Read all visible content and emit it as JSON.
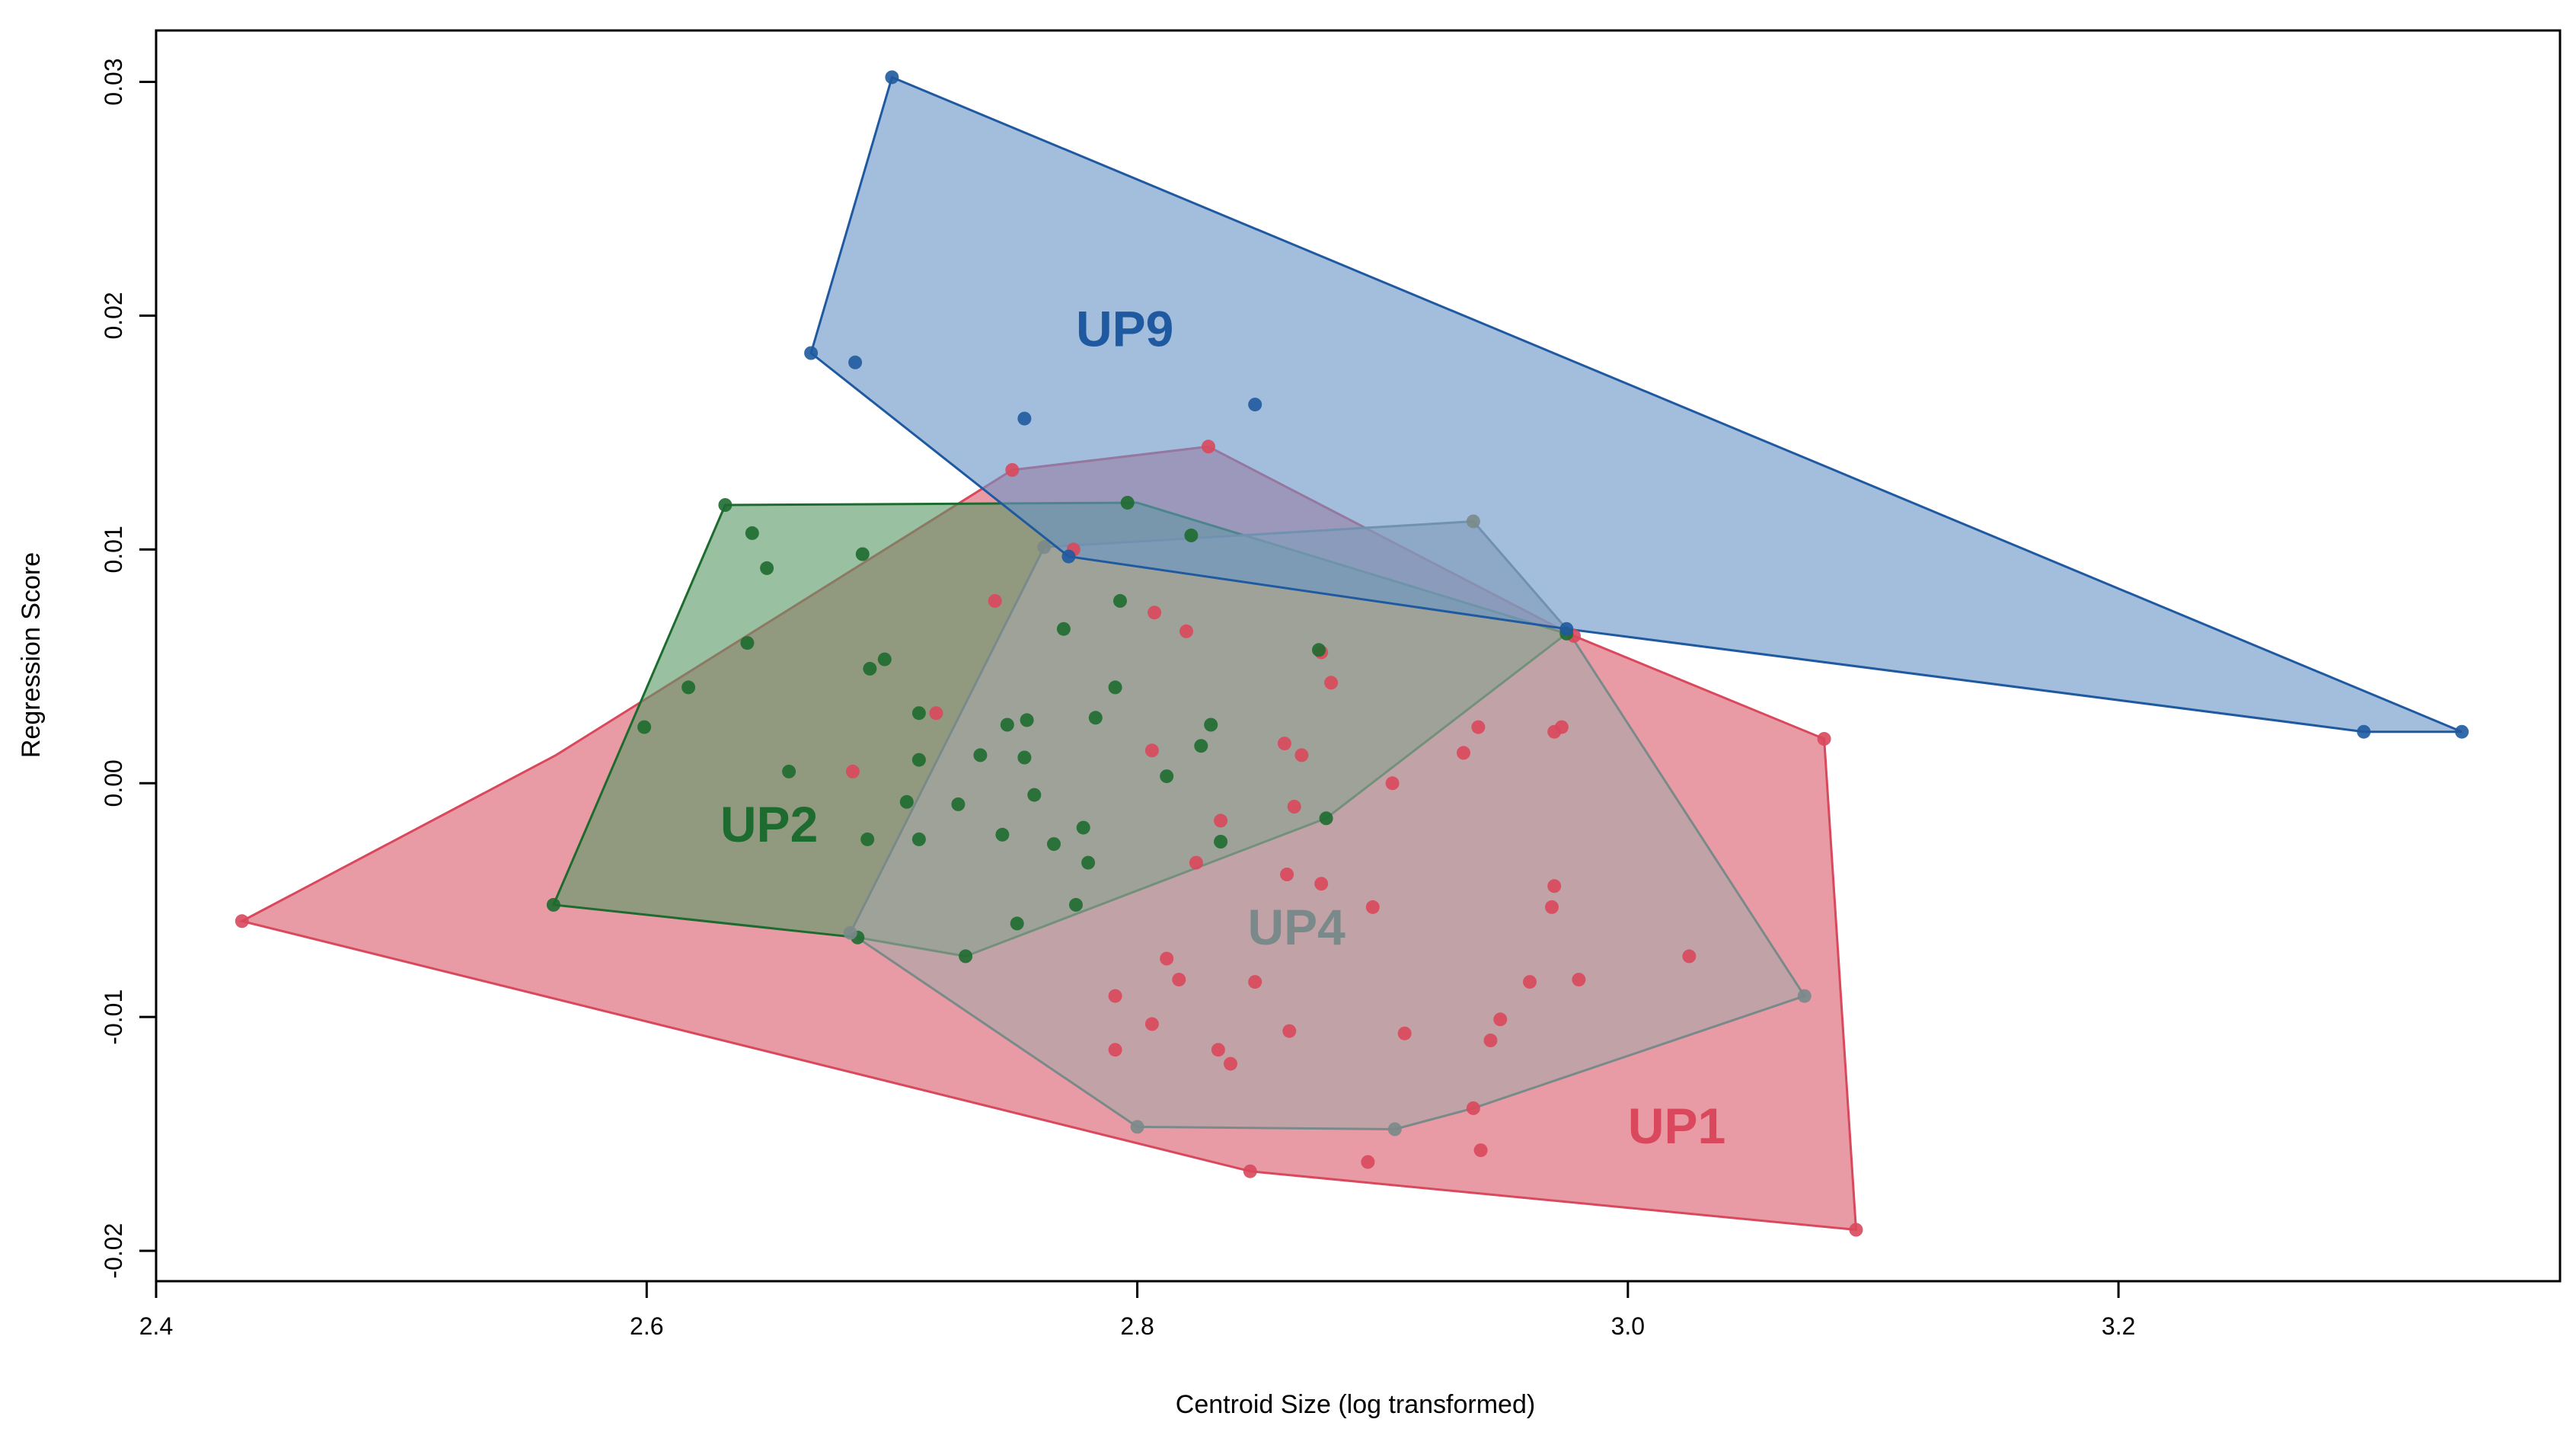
{
  "chart_data": {
    "type": "scatter",
    "title": "",
    "xlabel": "Centroid Size (log transformed)",
    "ylabel": "Regression Score",
    "xlim": [
      2.4,
      3.38
    ],
    "ylim": [
      -0.0213,
      0.0322
    ],
    "x_ticks": [
      {
        "value": 2.4,
        "label": "2.4"
      },
      {
        "value": 2.6,
        "label": "2.6"
      },
      {
        "value": 2.8,
        "label": "2.8"
      },
      {
        "value": 3.0,
        "label": "3.0"
      },
      {
        "value": 3.2,
        "label": "3.2"
      }
    ],
    "y_ticks": [
      {
        "value": -0.02,
        "label": "-0.02"
      },
      {
        "value": -0.01,
        "label": "-0.01"
      },
      {
        "value": 0.0,
        "label": "0.00"
      },
      {
        "value": 0.01,
        "label": "0.01"
      },
      {
        "value": 0.02,
        "label": "0.02"
      },
      {
        "value": 0.03,
        "label": "0.03"
      }
    ],
    "grid": false,
    "legend": "none",
    "series": [
      {
        "name": "UP1",
        "color": "#d9485c",
        "fill": "#e17a87",
        "label_at": [
          3.0,
          -0.0154
        ],
        "hull": [
          [
            2.435,
            -0.0059
          ],
          [
            2.846,
            -0.0166
          ],
          [
            3.093,
            -0.0191
          ],
          [
            3.08,
            0.0019
          ],
          [
            2.978,
            0.0063
          ],
          [
            2.829,
            0.0144
          ],
          [
            2.749,
            0.0134
          ],
          [
            2.563,
            0.0012
          ]
        ],
        "points": [
          [
            2.435,
            -0.0059
          ],
          [
            2.846,
            -0.0166
          ],
          [
            3.093,
            -0.0191
          ],
          [
            3.08,
            0.0019
          ],
          [
            2.978,
            0.0063
          ],
          [
            2.829,
            0.0144
          ],
          [
            2.749,
            0.0134
          ],
          [
            2.894,
            -0.0162
          ],
          [
            2.94,
            -0.0157
          ],
          [
            2.937,
            -0.0139
          ],
          [
            2.909,
            -0.0107
          ],
          [
            2.944,
            -0.011
          ],
          [
            2.948,
            -0.0101
          ],
          [
            2.96,
            -0.0085
          ],
          [
            2.98,
            -0.0084
          ],
          [
            3.025,
            -0.0074
          ],
          [
            2.969,
            -0.0053
          ],
          [
            2.97,
            -0.0044
          ],
          [
            2.97,
            0.0022
          ],
          [
            2.973,
            0.0024
          ],
          [
            2.939,
            0.0024
          ],
          [
            2.933,
            0.0013
          ],
          [
            2.904,
            0.0
          ],
          [
            2.896,
            -0.0053
          ],
          [
            2.875,
            -0.0043
          ],
          [
            2.861,
            -0.0039
          ],
          [
            2.862,
            -0.0106
          ],
          [
            2.848,
            -0.0085
          ],
          [
            2.838,
            -0.012
          ],
          [
            2.833,
            -0.0114
          ],
          [
            2.817,
            -0.0084
          ],
          [
            2.812,
            -0.0075
          ],
          [
            2.806,
            -0.0103
          ],
          [
            2.791,
            -0.0114
          ],
          [
            2.791,
            -0.0091
          ],
          [
            2.864,
            -0.001
          ],
          [
            2.867,
            0.0012
          ],
          [
            2.86,
            0.0017
          ],
          [
            2.879,
            0.0043
          ],
          [
            2.875,
            0.0056
          ],
          [
            2.834,
            -0.0016
          ],
          [
            2.824,
            -0.0034
          ],
          [
            2.82,
            0.0065
          ],
          [
            2.807,
            0.0073
          ],
          [
            2.806,
            0.0014
          ],
          [
            2.718,
            0.003
          ],
          [
            2.742,
            0.0078
          ],
          [
            2.774,
            0.01
          ],
          [
            2.684,
            0.0005
          ]
        ]
      },
      {
        "name": "UP2",
        "color": "#1e6b30",
        "fill": "#5a9a68",
        "label_at": [
          2.63,
          -0.0025
        ],
        "hull": [
          [
            2.562,
            -0.0052
          ],
          [
            2.686,
            -0.0066
          ],
          [
            2.73,
            -0.0074
          ],
          [
            2.877,
            -0.0015
          ],
          [
            2.975,
            0.0064
          ],
          [
            2.8,
            0.012
          ],
          [
            2.632,
            0.0119
          ]
        ],
        "points": [
          [
            2.562,
            -0.0052
          ],
          [
            2.632,
            0.0119
          ],
          [
            2.643,
            0.0107
          ],
          [
            2.649,
            0.0092
          ],
          [
            2.688,
            0.0098
          ],
          [
            2.641,
            0.006
          ],
          [
            2.617,
            0.0041
          ],
          [
            2.599,
            0.0024
          ],
          [
            2.658,
            0.0005
          ],
          [
            2.691,
            0.0049
          ],
          [
            2.697,
            0.0053
          ],
          [
            2.711,
            0.003
          ],
          [
            2.711,
            0.001
          ],
          [
            2.706,
            -0.0008
          ],
          [
            2.69,
            -0.0024
          ],
          [
            2.686,
            -0.0066
          ],
          [
            2.73,
            -0.0074
          ],
          [
            2.877,
            -0.0015
          ],
          [
            2.975,
            0.0064
          ],
          [
            2.796,
            0.012
          ],
          [
            2.822,
            0.0106
          ],
          [
            2.747,
            0.0025
          ],
          [
            2.754,
            0.0011
          ],
          [
            2.745,
            -0.0022
          ],
          [
            2.711,
            -0.0024
          ],
          [
            2.758,
            -0.0005
          ],
          [
            2.778,
            -0.0019
          ],
          [
            2.766,
            -0.0026
          ],
          [
            2.77,
            0.0066
          ],
          [
            2.783,
            0.0028
          ],
          [
            2.791,
            0.0041
          ],
          [
            2.793,
            0.0078
          ],
          [
            2.78,
            -0.0034
          ],
          [
            2.775,
            -0.0052
          ],
          [
            2.751,
            -0.006
          ],
          [
            2.834,
            -0.0025
          ],
          [
            2.83,
            0.0025
          ],
          [
            2.826,
            0.0016
          ],
          [
            2.874,
            0.0057
          ],
          [
            2.812,
            0.0003
          ],
          [
            2.755,
            0.0027
          ],
          [
            2.727,
            -0.0009
          ],
          [
            2.736,
            0.0012
          ]
        ]
      },
      {
        "name": "UP4",
        "color": "#7a8a8a",
        "fill": "#a8a8a8",
        "label_at": [
          2.845,
          -0.0069
        ],
        "hull": [
          [
            2.683,
            -0.0064
          ],
          [
            2.8,
            -0.0147
          ],
          [
            2.905,
            -0.0148
          ],
          [
            2.937,
            -0.0139
          ],
          [
            3.072,
            -0.0091
          ],
          [
            2.975,
            0.0066
          ],
          [
            2.937,
            0.0112
          ],
          [
            2.762,
            0.0101
          ]
        ],
        "points": [
          [
            2.683,
            -0.0064
          ],
          [
            2.8,
            -0.0147
          ],
          [
            2.905,
            -0.0148
          ],
          [
            3.072,
            -0.0091
          ],
          [
            2.937,
            0.0112
          ],
          [
            2.762,
            0.0101
          ]
        ]
      },
      {
        "name": "UP9",
        "color": "#1f5aa0",
        "fill": "#6a96c8",
        "label_at": [
          2.775,
          0.0187
        ],
        "hull": [
          [
            2.667,
            0.0184
          ],
          [
            2.772,
            0.0097
          ],
          [
            2.975,
            0.0066
          ],
          [
            3.3,
            0.0022
          ],
          [
            3.34,
            0.0022
          ],
          [
            2.7,
            0.0302
          ]
        ],
        "points": [
          [
            2.667,
            0.0184
          ],
          [
            2.7,
            0.0302
          ],
          [
            2.685,
            0.018
          ],
          [
            2.754,
            0.0156
          ],
          [
            2.848,
            0.0162
          ],
          [
            3.3,
            0.0022
          ],
          [
            3.34,
            0.0022
          ],
          [
            2.772,
            0.0097
          ],
          [
            2.975,
            0.0066
          ]
        ]
      }
    ]
  }
}
